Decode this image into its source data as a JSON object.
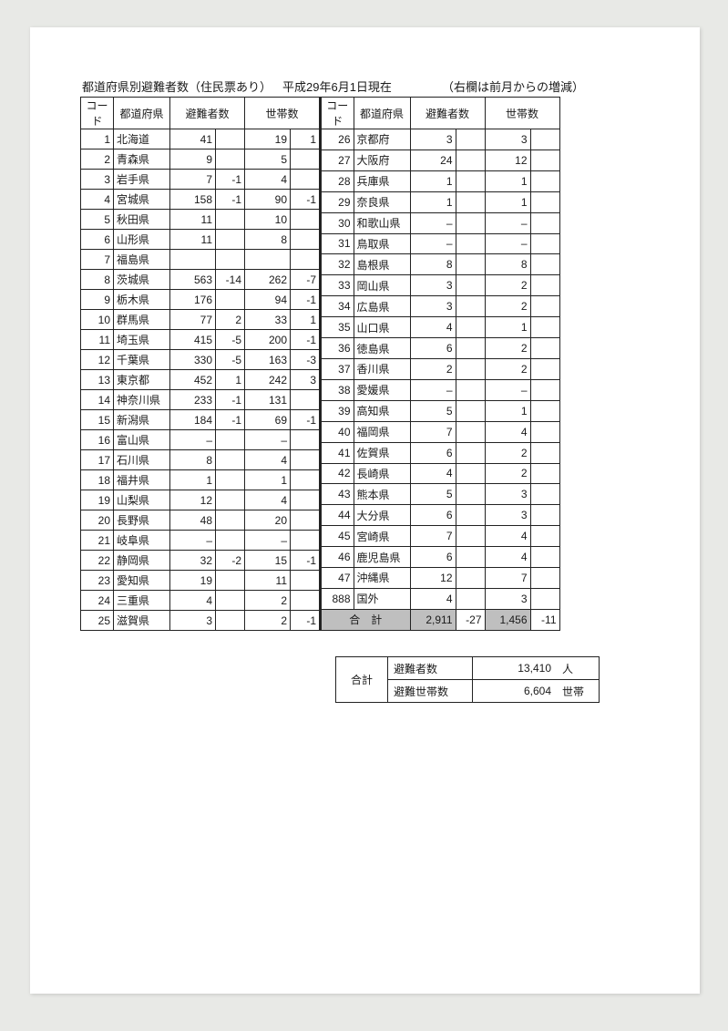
{
  "title_left": "都道府県別避難者数（住民票あり）",
  "title_mid": "平成29年6月1日現在",
  "title_right": "（右欄は前月からの増減）",
  "headers": {
    "code": "コード",
    "pref": "都道府県",
    "evac": "避難者数",
    "hh": "世帯数"
  },
  "left_rows": [
    {
      "code": "1",
      "pref": "北海道",
      "evac": "41",
      "evac_d": "",
      "hh": "19",
      "hh_d": "1"
    },
    {
      "code": "2",
      "pref": "青森県",
      "evac": "9",
      "evac_d": "",
      "hh": "5",
      "hh_d": ""
    },
    {
      "code": "3",
      "pref": "岩手県",
      "evac": "7",
      "evac_d": "-1",
      "hh": "4",
      "hh_d": ""
    },
    {
      "code": "4",
      "pref": "宮城県",
      "evac": "158",
      "evac_d": "-1",
      "hh": "90",
      "hh_d": "-1"
    },
    {
      "code": "5",
      "pref": "秋田県",
      "evac": "11",
      "evac_d": "",
      "hh": "10",
      "hh_d": ""
    },
    {
      "code": "6",
      "pref": "山形県",
      "evac": "11",
      "evac_d": "",
      "hh": "8",
      "hh_d": ""
    },
    {
      "code": "7",
      "pref": "福島県",
      "evac": "",
      "evac_d": "",
      "hh": "",
      "hh_d": ""
    },
    {
      "code": "8",
      "pref": "茨城県",
      "evac": "563",
      "evac_d": "-14",
      "hh": "262",
      "hh_d": "-7"
    },
    {
      "code": "9",
      "pref": "栃木県",
      "evac": "176",
      "evac_d": "",
      "hh": "94",
      "hh_d": "-1"
    },
    {
      "code": "10",
      "pref": "群馬県",
      "evac": "77",
      "evac_d": "2",
      "hh": "33",
      "hh_d": "1"
    },
    {
      "code": "11",
      "pref": "埼玉県",
      "evac": "415",
      "evac_d": "-5",
      "hh": "200",
      "hh_d": "-1"
    },
    {
      "code": "12",
      "pref": "千葉県",
      "evac": "330",
      "evac_d": "-5",
      "hh": "163",
      "hh_d": "-3"
    },
    {
      "code": "13",
      "pref": "東京都",
      "evac": "452",
      "evac_d": "1",
      "hh": "242",
      "hh_d": "3"
    },
    {
      "code": "14",
      "pref": "神奈川県",
      "evac": "233",
      "evac_d": "-1",
      "hh": "131",
      "hh_d": ""
    },
    {
      "code": "15",
      "pref": "新潟県",
      "evac": "184",
      "evac_d": "-1",
      "hh": "69",
      "hh_d": "-1"
    },
    {
      "code": "16",
      "pref": "富山県",
      "evac": "–",
      "evac_d": "",
      "hh": "–",
      "hh_d": ""
    },
    {
      "code": "17",
      "pref": "石川県",
      "evac": "8",
      "evac_d": "",
      "hh": "4",
      "hh_d": ""
    },
    {
      "code": "18",
      "pref": "福井県",
      "evac": "1",
      "evac_d": "",
      "hh": "1",
      "hh_d": ""
    },
    {
      "code": "19",
      "pref": "山梨県",
      "evac": "12",
      "evac_d": "",
      "hh": "4",
      "hh_d": ""
    },
    {
      "code": "20",
      "pref": "長野県",
      "evac": "48",
      "evac_d": "",
      "hh": "20",
      "hh_d": ""
    },
    {
      "code": "21",
      "pref": "岐阜県",
      "evac": "–",
      "evac_d": "",
      "hh": "–",
      "hh_d": ""
    },
    {
      "code": "22",
      "pref": "静岡県",
      "evac": "32",
      "evac_d": "-2",
      "hh": "15",
      "hh_d": "-1"
    },
    {
      "code": "23",
      "pref": "愛知県",
      "evac": "19",
      "evac_d": "",
      "hh": "11",
      "hh_d": ""
    },
    {
      "code": "24",
      "pref": "三重県",
      "evac": "4",
      "evac_d": "",
      "hh": "2",
      "hh_d": ""
    },
    {
      "code": "25",
      "pref": "滋賀県",
      "evac": "3",
      "evac_d": "",
      "hh": "2",
      "hh_d": "-1"
    }
  ],
  "right_rows": [
    {
      "code": "26",
      "pref": "京都府",
      "evac": "3",
      "evac_d": "",
      "hh": "3",
      "hh_d": ""
    },
    {
      "code": "27",
      "pref": "大阪府",
      "evac": "24",
      "evac_d": "",
      "hh": "12",
      "hh_d": ""
    },
    {
      "code": "28",
      "pref": "兵庫県",
      "evac": "1",
      "evac_d": "",
      "hh": "1",
      "hh_d": ""
    },
    {
      "code": "29",
      "pref": "奈良県",
      "evac": "1",
      "evac_d": "",
      "hh": "1",
      "hh_d": ""
    },
    {
      "code": "30",
      "pref": "和歌山県",
      "evac": "–",
      "evac_d": "",
      "hh": "–",
      "hh_d": ""
    },
    {
      "code": "31",
      "pref": "鳥取県",
      "evac": "–",
      "evac_d": "",
      "hh": "–",
      "hh_d": ""
    },
    {
      "code": "32",
      "pref": "島根県",
      "evac": "8",
      "evac_d": "",
      "hh": "8",
      "hh_d": ""
    },
    {
      "code": "33",
      "pref": "岡山県",
      "evac": "3",
      "evac_d": "",
      "hh": "2",
      "hh_d": ""
    },
    {
      "code": "34",
      "pref": "広島県",
      "evac": "3",
      "evac_d": "",
      "hh": "2",
      "hh_d": ""
    },
    {
      "code": "35",
      "pref": "山口県",
      "evac": "4",
      "evac_d": "",
      "hh": "1",
      "hh_d": ""
    },
    {
      "code": "36",
      "pref": "徳島県",
      "evac": "6",
      "evac_d": "",
      "hh": "2",
      "hh_d": ""
    },
    {
      "code": "37",
      "pref": "香川県",
      "evac": "2",
      "evac_d": "",
      "hh": "2",
      "hh_d": ""
    },
    {
      "code": "38",
      "pref": "愛媛県",
      "evac": "–",
      "evac_d": "",
      "hh": "–",
      "hh_d": ""
    },
    {
      "code": "39",
      "pref": "高知県",
      "evac": "5",
      "evac_d": "",
      "hh": "1",
      "hh_d": ""
    },
    {
      "code": "40",
      "pref": "福岡県",
      "evac": "7",
      "evac_d": "",
      "hh": "4",
      "hh_d": ""
    },
    {
      "code": "41",
      "pref": "佐賀県",
      "evac": "6",
      "evac_d": "",
      "hh": "2",
      "hh_d": ""
    },
    {
      "code": "42",
      "pref": "長崎県",
      "evac": "4",
      "evac_d": "",
      "hh": "2",
      "hh_d": ""
    },
    {
      "code": "43",
      "pref": "熊本県",
      "evac": "5",
      "evac_d": "",
      "hh": "3",
      "hh_d": ""
    },
    {
      "code": "44",
      "pref": "大分県",
      "evac": "6",
      "evac_d": "",
      "hh": "3",
      "hh_d": ""
    },
    {
      "code": "45",
      "pref": "宮崎県",
      "evac": "7",
      "evac_d": "",
      "hh": "4",
      "hh_d": ""
    },
    {
      "code": "46",
      "pref": "鹿児島県",
      "evac": "6",
      "evac_d": "",
      "hh": "4",
      "hh_d": ""
    },
    {
      "code": "47",
      "pref": "沖縄県",
      "evac": "12",
      "evac_d": "",
      "hh": "7",
      "hh_d": ""
    },
    {
      "code": "888",
      "pref": "国外",
      "evac": "4",
      "evac_d": "",
      "hh": "3",
      "hh_d": ""
    }
  ],
  "totals_row": {
    "label": "合　計",
    "evac": "2,911",
    "evac_d": "-27",
    "hh": "1,456",
    "hh_d": "-11"
  },
  "summary": {
    "box_label": "合計",
    "evac_label": "避難者数",
    "evac_value": "13,410",
    "evac_unit": "人",
    "hh_label": "避難世帯数",
    "hh_value": "6,604",
    "hh_unit": "世帯"
  }
}
